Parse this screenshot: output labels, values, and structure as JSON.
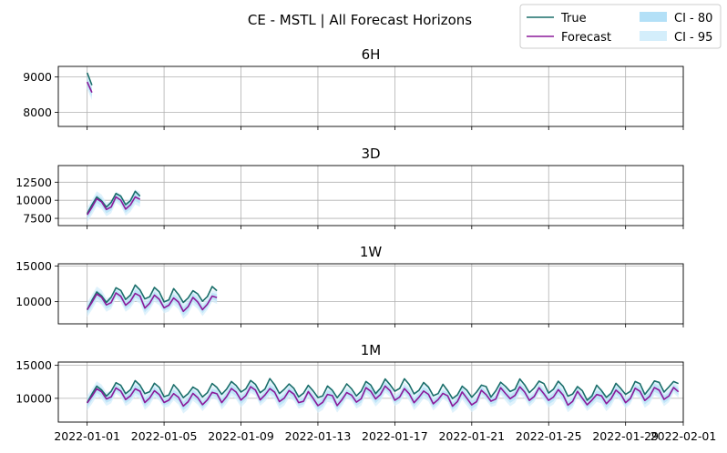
{
  "title": "CE - MSTL | All Forecast Horizons",
  "colors": {
    "true": "#1a6e6a",
    "forecast": "#8b1a9a",
    "ci80": "#b3e0f7",
    "ci95": "#d4eefb",
    "grid": "#b0b0b0"
  },
  "legend": {
    "placement": "upper-right",
    "entries": [
      {
        "label": "True",
        "kind": "line",
        "color": "#1a6e6a"
      },
      {
        "label": "CI - 80",
        "kind": "patch",
        "color": "#b3e0f7"
      },
      {
        "label": "Forecast",
        "kind": "line",
        "color": "#8b1a9a"
      },
      {
        "label": "CI - 95",
        "kind": "patch",
        "color": "#d4eefb"
      }
    ]
  },
  "x_ticks": [
    "2022-01-01",
    "2022-01-05",
    "2022-01-09",
    "2022-01-13",
    "2022-01-17",
    "2022-01-21",
    "2022-01-25",
    "2022-01-29",
    "2022-02-01"
  ],
  "chart_data": [
    {
      "type": "line",
      "title": "6H",
      "grid": true,
      "xlim": [
        "2021-12-30T12:00",
        "2022-02-01T00:00"
      ],
      "ylim": [
        7600,
        9300
      ],
      "yticks": [
        8000,
        9000
      ],
      "ytick_labels": [
        "8000",
        "9000"
      ],
      "length_days": 0.25,
      "series": [
        {
          "name": "True",
          "role": "true",
          "base": 8700,
          "amp": 700,
          "trend": 0,
          "offset": 0
        },
        {
          "name": "Forecast",
          "role": "forecast",
          "base": 8500,
          "amp": 600,
          "trend": 0,
          "offset": 0
        }
      ]
    },
    {
      "type": "line",
      "title": "3D",
      "grid": true,
      "xlim": [
        "2021-12-30T12:00",
        "2022-02-01T00:00"
      ],
      "ylim": [
        6500,
        14800
      ],
      "yticks": [
        7500,
        10000,
        12500
      ],
      "ytick_labels": [
        "7500",
        "10000",
        "12500"
      ],
      "length_days": 2.75,
      "series": [
        {
          "name": "True",
          "role": "true",
          "base": 9300,
          "amp": 1300,
          "trend": 900,
          "offset": 300
        },
        {
          "name": "Forecast",
          "role": "forecast",
          "base": 9000,
          "amp": 1300,
          "trend": 900,
          "offset": 0
        }
      ]
    },
    {
      "type": "line",
      "title": "1W",
      "grid": true,
      "xlim": [
        "2021-12-30T12:00",
        "2022-02-01T00:00"
      ],
      "ylim": [
        6900,
        15300
      ],
      "yticks": [
        10000,
        15000
      ],
      "ytick_labels": [
        "10000",
        "15000"
      ],
      "length_days": 6.75,
      "series": [
        {
          "name": "True",
          "role": "true",
          "base": 10100,
          "amp": 1400,
          "trend": 500,
          "offset": 700
        },
        {
          "name": "Forecast",
          "role": "forecast",
          "base": 9900,
          "amp": 1300,
          "trend": 300,
          "offset": 0
        }
      ]
    },
    {
      "type": "line",
      "title": "1M",
      "grid": true,
      "xlim": [
        "2021-12-30T12:00",
        "2022-02-01T00:00"
      ],
      "ylim": [
        6400,
        15500
      ],
      "yticks": [
        10000,
        15000
      ],
      "ytick_labels": [
        "10000",
        "15000"
      ],
      "length_days": 30.75,
      "series": [
        {
          "name": "True",
          "role": "true",
          "base": 10600,
          "amp": 1400,
          "trend": 100,
          "offset": 700
        },
        {
          "name": "Forecast",
          "role": "forecast",
          "base": 10300,
          "amp": 1300,
          "trend": 0,
          "offset": 0
        }
      ]
    }
  ]
}
